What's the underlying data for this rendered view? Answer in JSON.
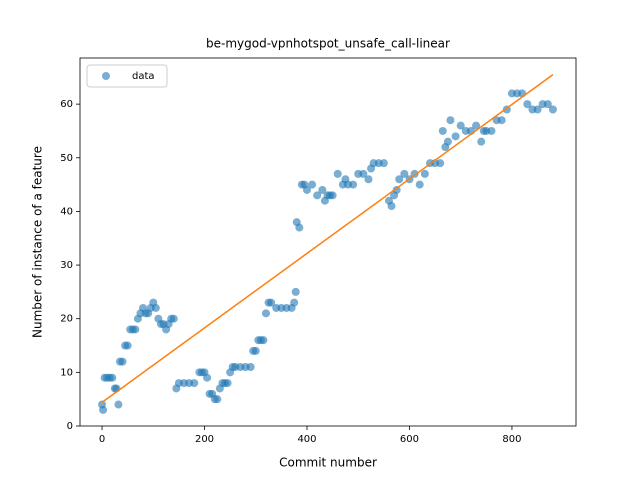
{
  "chart_data": {
    "type": "scatter",
    "title": "be-mygod-vpnhotspot_unsafe_call-linear",
    "xlabel": "Commit number",
    "ylabel": "Number of instance of a feature",
    "xlim": [
      -43,
      925
    ],
    "ylim": [
      0,
      68.6
    ],
    "xticks": [
      0,
      200,
      400,
      600,
      800
    ],
    "yticks": [
      0,
      10,
      20,
      30,
      40,
      50,
      60
    ],
    "legend": "upper left",
    "series": [
      {
        "name": "data",
        "color": "#1f77b4",
        "x": [
          0,
          2,
          5,
          10,
          15,
          20,
          25,
          28,
          32,
          35,
          40,
          45,
          50,
          55,
          60,
          65,
          70,
          75,
          80,
          85,
          90,
          95,
          100,
          105,
          110,
          115,
          120,
          125,
          130,
          135,
          140,
          145,
          150,
          160,
          170,
          180,
          190,
          195,
          200,
          205,
          210,
          215,
          220,
          225,
          230,
          235,
          240,
          245,
          250,
          255,
          260,
          270,
          280,
          290,
          295,
          300,
          305,
          310,
          315,
          320,
          325,
          330,
          340,
          350,
          360,
          370,
          375,
          378,
          380,
          385,
          390,
          395,
          400,
          410,
          420,
          430,
          435,
          440,
          445,
          450,
          460,
          470,
          475,
          480,
          490,
          500,
          510,
          520,
          525,
          530,
          540,
          550,
          560,
          565,
          570,
          575,
          580,
          590,
          600,
          610,
          620,
          630,
          640,
          650,
          660,
          665,
          670,
          675,
          680,
          690,
          700,
          710,
          720,
          730,
          740,
          745,
          750,
          760,
          770,
          780,
          790,
          800,
          810,
          820,
          830,
          840,
          850,
          860,
          870,
          880
        ],
        "values": [
          4,
          3,
          9,
          9,
          9,
          9,
          7,
          7,
          4,
          12,
          12,
          15,
          15,
          18,
          18,
          18,
          20,
          21,
          22,
          21,
          21,
          22,
          23,
          22,
          20,
          19,
          19,
          18,
          19,
          20,
          20,
          7,
          8,
          8,
          8,
          8,
          10,
          10,
          10,
          9,
          6,
          6,
          5,
          5,
          7,
          8,
          8,
          8,
          10,
          11,
          11,
          11,
          11,
          11,
          14,
          14,
          16,
          16,
          16,
          21,
          23,
          23,
          22,
          22,
          22,
          22,
          23,
          25,
          38,
          37,
          45,
          45,
          44,
          45,
          43,
          44,
          42,
          43,
          43,
          43,
          47,
          45,
          46,
          45,
          45,
          47,
          47,
          46,
          48,
          49,
          49,
          49,
          42,
          41,
          43,
          44,
          46,
          47,
          46,
          47,
          45,
          47,
          49,
          49,
          49,
          55,
          52,
          53,
          57,
          54,
          56,
          55,
          55,
          56,
          53,
          55,
          55,
          55,
          57,
          57,
          59,
          62,
          62,
          62,
          60,
          59,
          59,
          60,
          60,
          59
        ]
      },
      {
        "color": "#ff7f0e",
        "x": [
          0,
          880
        ],
        "values": [
          4.4,
          65.5
        ]
      }
    ]
  }
}
